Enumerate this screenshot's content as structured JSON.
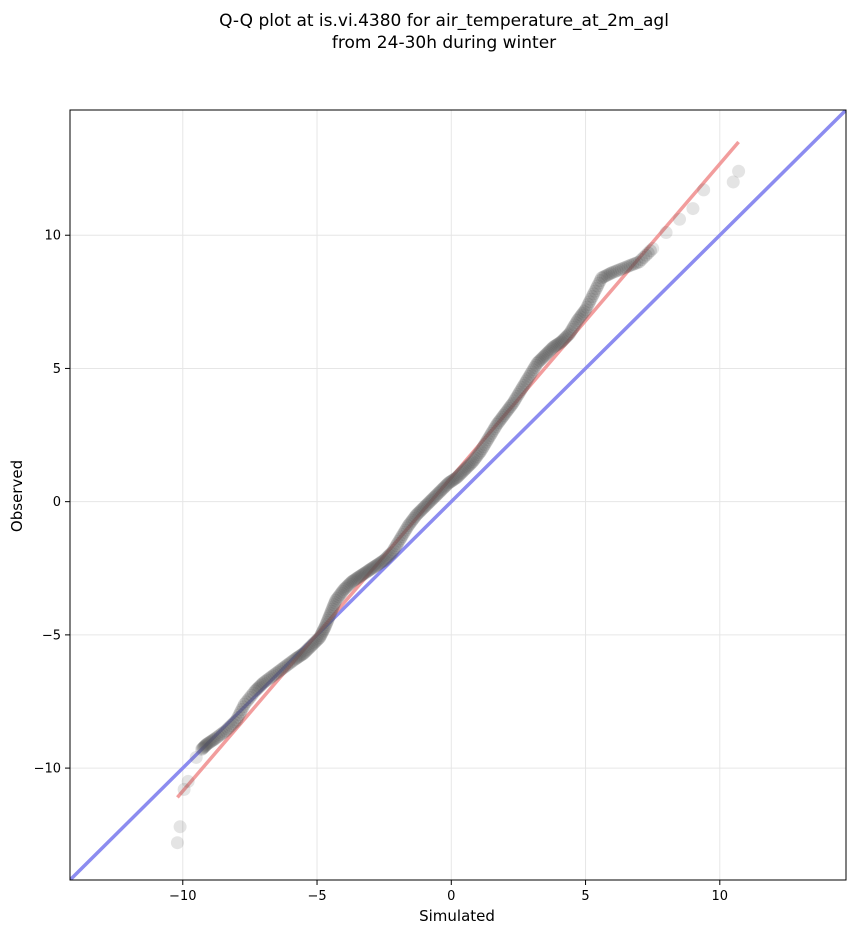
{
  "chart_data": {
    "type": "scatter",
    "title": "Q-Q plot at is.vi.4380 for air_temperature_at_2m_agl",
    "subtitle": "from 24-30h during winter",
    "xlabel": "Simulated",
    "ylabel": "Observed",
    "xlim": [
      -14.2,
      14.7
    ],
    "ylim": [
      -14.2,
      14.7
    ],
    "xticks": [
      -10,
      -5,
      0,
      5,
      10
    ],
    "yticks": [
      -10,
      -5,
      0,
      5,
      10
    ],
    "xtick_labels": [
      "−10",
      "−5",
      "0",
      "5",
      "10"
    ],
    "ytick_labels": [
      "−10",
      "−5",
      "0",
      "5",
      "10"
    ],
    "grid": true,
    "colors": {
      "points": "#555555",
      "identity_line": "#8c8cf0",
      "fit_line": "#f08c8c"
    },
    "identity_line": {
      "x": [
        -14.2,
        14.7
      ],
      "y": [
        -14.2,
        14.7
      ]
    },
    "fit_line": {
      "x": [
        -10.2,
        10.7
      ],
      "y": [
        -11.1,
        13.5
      ]
    },
    "quantiles": {
      "x": [
        -10.2,
        -10.1,
        -9.95,
        -9.8,
        -9.5,
        -9.3,
        -9.1,
        -8.8,
        -8.4,
        -8.0,
        -7.7,
        -7.3,
        -7.0,
        -6.6,
        -6.2,
        -5.8,
        -5.5,
        -5.2,
        -4.9,
        -4.7,
        -4.5,
        -4.3,
        -4.0,
        -3.7,
        -3.4,
        -3.1,
        -2.8,
        -2.5,
        -2.2,
        -1.9,
        -1.6,
        -1.3,
        -1.0,
        -0.7,
        -0.4,
        -0.1,
        0.2,
        0.5,
        0.8,
        1.1,
        1.4,
        1.7,
        2.0,
        2.3,
        2.6,
        2.9,
        3.2,
        3.5,
        3.8,
        4.1,
        4.4,
        4.7,
        5.0,
        5.3,
        5.6,
        6.0,
        6.5,
        7.0,
        7.5,
        8.0,
        8.5,
        9.0,
        9.4,
        10.5,
        10.7
      ],
      "y": [
        -12.8,
        -12.2,
        -10.8,
        -10.5,
        -9.6,
        -9.3,
        -9.1,
        -8.9,
        -8.6,
        -8.2,
        -7.6,
        -7.1,
        -6.8,
        -6.5,
        -6.2,
        -5.9,
        -5.7,
        -5.4,
        -5.1,
        -4.7,
        -4.2,
        -3.7,
        -3.3,
        -3.0,
        -2.8,
        -2.6,
        -2.4,
        -2.2,
        -1.9,
        -1.4,
        -0.9,
        -0.5,
        -0.2,
        0.1,
        0.4,
        0.7,
        0.9,
        1.2,
        1.5,
        1.9,
        2.4,
        2.9,
        3.3,
        3.7,
        4.2,
        4.7,
        5.2,
        5.5,
        5.8,
        6.0,
        6.3,
        6.8,
        7.2,
        7.8,
        8.4,
        8.6,
        8.8,
        9.0,
        9.5,
        10.1,
        10.6,
        11.0,
        11.7,
        12.0,
        12.4
      ]
    }
  }
}
